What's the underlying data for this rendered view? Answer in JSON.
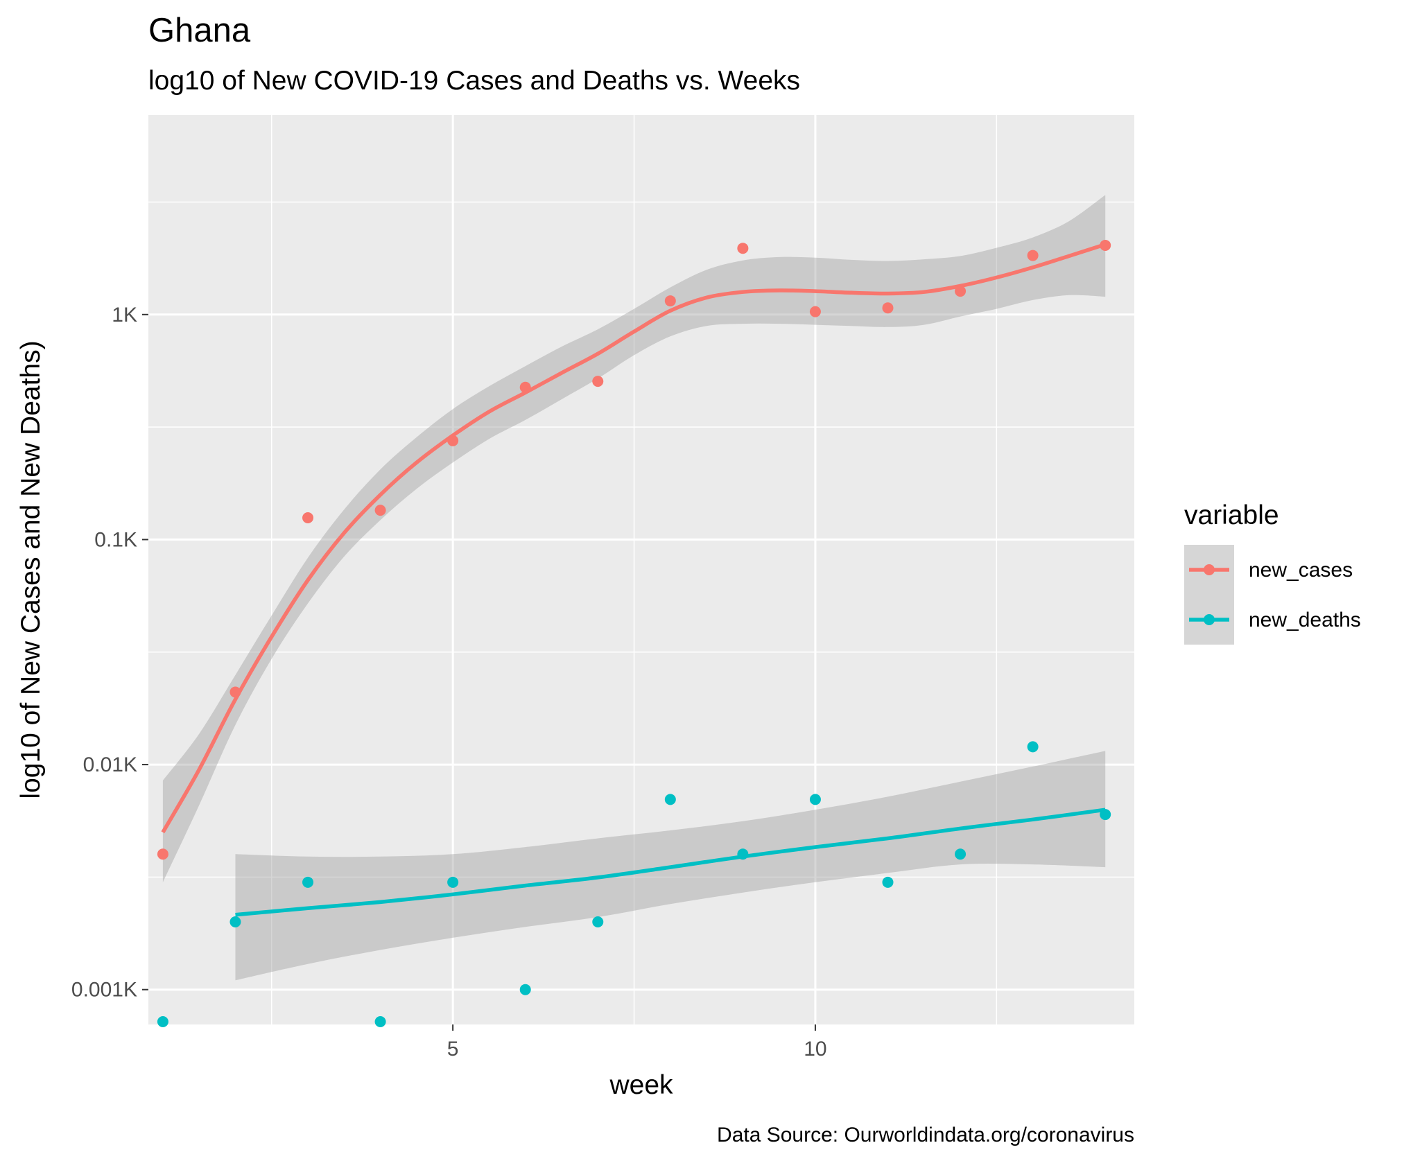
{
  "chart_data": {
    "type": "scatter",
    "title": "Ghana",
    "subtitle": "log10 of New COVID-19 Cases and Deaths vs. Weeks",
    "xlabel": "week",
    "ylabel": "log10 of New Cases and New Deaths)",
    "caption": "Data Source: Ourworldindata.org/coronavirus",
    "y_scale": "log10",
    "xlim": [
      0.8,
      14.4
    ],
    "ylim": [
      0.0007,
      7.7
    ],
    "x_ticks": [
      5,
      10
    ],
    "x_tick_labels": [
      "5",
      "10"
    ],
    "y_ticks": [
      0.001,
      0.01,
      0.1,
      1
    ],
    "y_tick_labels": [
      "0.001K",
      "0.01K",
      "0.1K",
      "1K"
    ],
    "grid": true,
    "legend": {
      "title": "variable",
      "position": "right"
    },
    "series": [
      {
        "name": "new_cases",
        "color": "#F8766D",
        "x": [
          1,
          2,
          3,
          4,
          5,
          6,
          7,
          8,
          9,
          10,
          11,
          12,
          13,
          14
        ],
        "y": [
          0.004,
          0.021,
          0.125,
          0.135,
          0.275,
          0.475,
          0.505,
          1.15,
          1.97,
          1.03,
          1.07,
          1.27,
          1.83,
          2.03
        ],
        "smooth": {
          "x": [
            1,
            1.5,
            2,
            2.5,
            3,
            3.5,
            4,
            4.5,
            5,
            5.5,
            6,
            6.5,
            7,
            7.5,
            8,
            8.5,
            9,
            9.5,
            10,
            10.5,
            11,
            11.5,
            12,
            12.5,
            13,
            13.5,
            14
          ],
          "y": [
            0.005,
            0.0095,
            0.0195,
            0.037,
            0.066,
            0.107,
            0.158,
            0.22,
            0.29,
            0.37,
            0.45,
            0.55,
            0.67,
            0.84,
            1.04,
            1.19,
            1.26,
            1.28,
            1.27,
            1.25,
            1.24,
            1.26,
            1.34,
            1.46,
            1.62,
            1.82,
            2.05
          ],
          "lower": [
            0.003,
            0.0066,
            0.015,
            0.0295,
            0.052,
            0.084,
            0.122,
            0.168,
            0.22,
            0.28,
            0.34,
            0.42,
            0.52,
            0.66,
            0.8,
            0.89,
            0.91,
            0.91,
            0.9,
            0.89,
            0.88,
            0.9,
            0.98,
            1.06,
            1.16,
            1.22,
            1.2
          ],
          "upper": [
            0.0085,
            0.0137,
            0.025,
            0.046,
            0.083,
            0.136,
            0.205,
            0.285,
            0.38,
            0.48,
            0.59,
            0.72,
            0.86,
            1.06,
            1.32,
            1.58,
            1.74,
            1.8,
            1.79,
            1.75,
            1.73,
            1.76,
            1.82,
            1.98,
            2.2,
            2.6,
            3.4
          ]
        }
      },
      {
        "name": "new_deaths",
        "color": "#00BFC4",
        "x": [
          1,
          2,
          3,
          4,
          5,
          6,
          7,
          8,
          9,
          10,
          11,
          12,
          13,
          14
        ],
        "y": [
          0.00072,
          0.002,
          0.003,
          0.00072,
          0.003,
          0.001,
          0.002,
          0.007,
          0.004,
          0.007,
          0.003,
          0.004,
          0.012,
          0.006
        ],
        "smooth": {
          "x": [
            2,
            3,
            4,
            5,
            6,
            7,
            8,
            9,
            10,
            11,
            12,
            13,
            14
          ],
          "y": [
            0.00215,
            0.0023,
            0.00245,
            0.00265,
            0.0029,
            0.00315,
            0.0035,
            0.0039,
            0.0043,
            0.0047,
            0.0052,
            0.0057,
            0.0063
          ],
          "lower": [
            0.0011,
            0.0013,
            0.0015,
            0.0017,
            0.0019,
            0.0021,
            0.0024,
            0.0027,
            0.003,
            0.0033,
            0.0036,
            0.0036,
            0.0035
          ],
          "upper": [
            0.004,
            0.0039,
            0.0039,
            0.004,
            0.0043,
            0.0047,
            0.0051,
            0.0056,
            0.0063,
            0.0072,
            0.0084,
            0.0098,
            0.0115
          ]
        }
      }
    ]
  }
}
